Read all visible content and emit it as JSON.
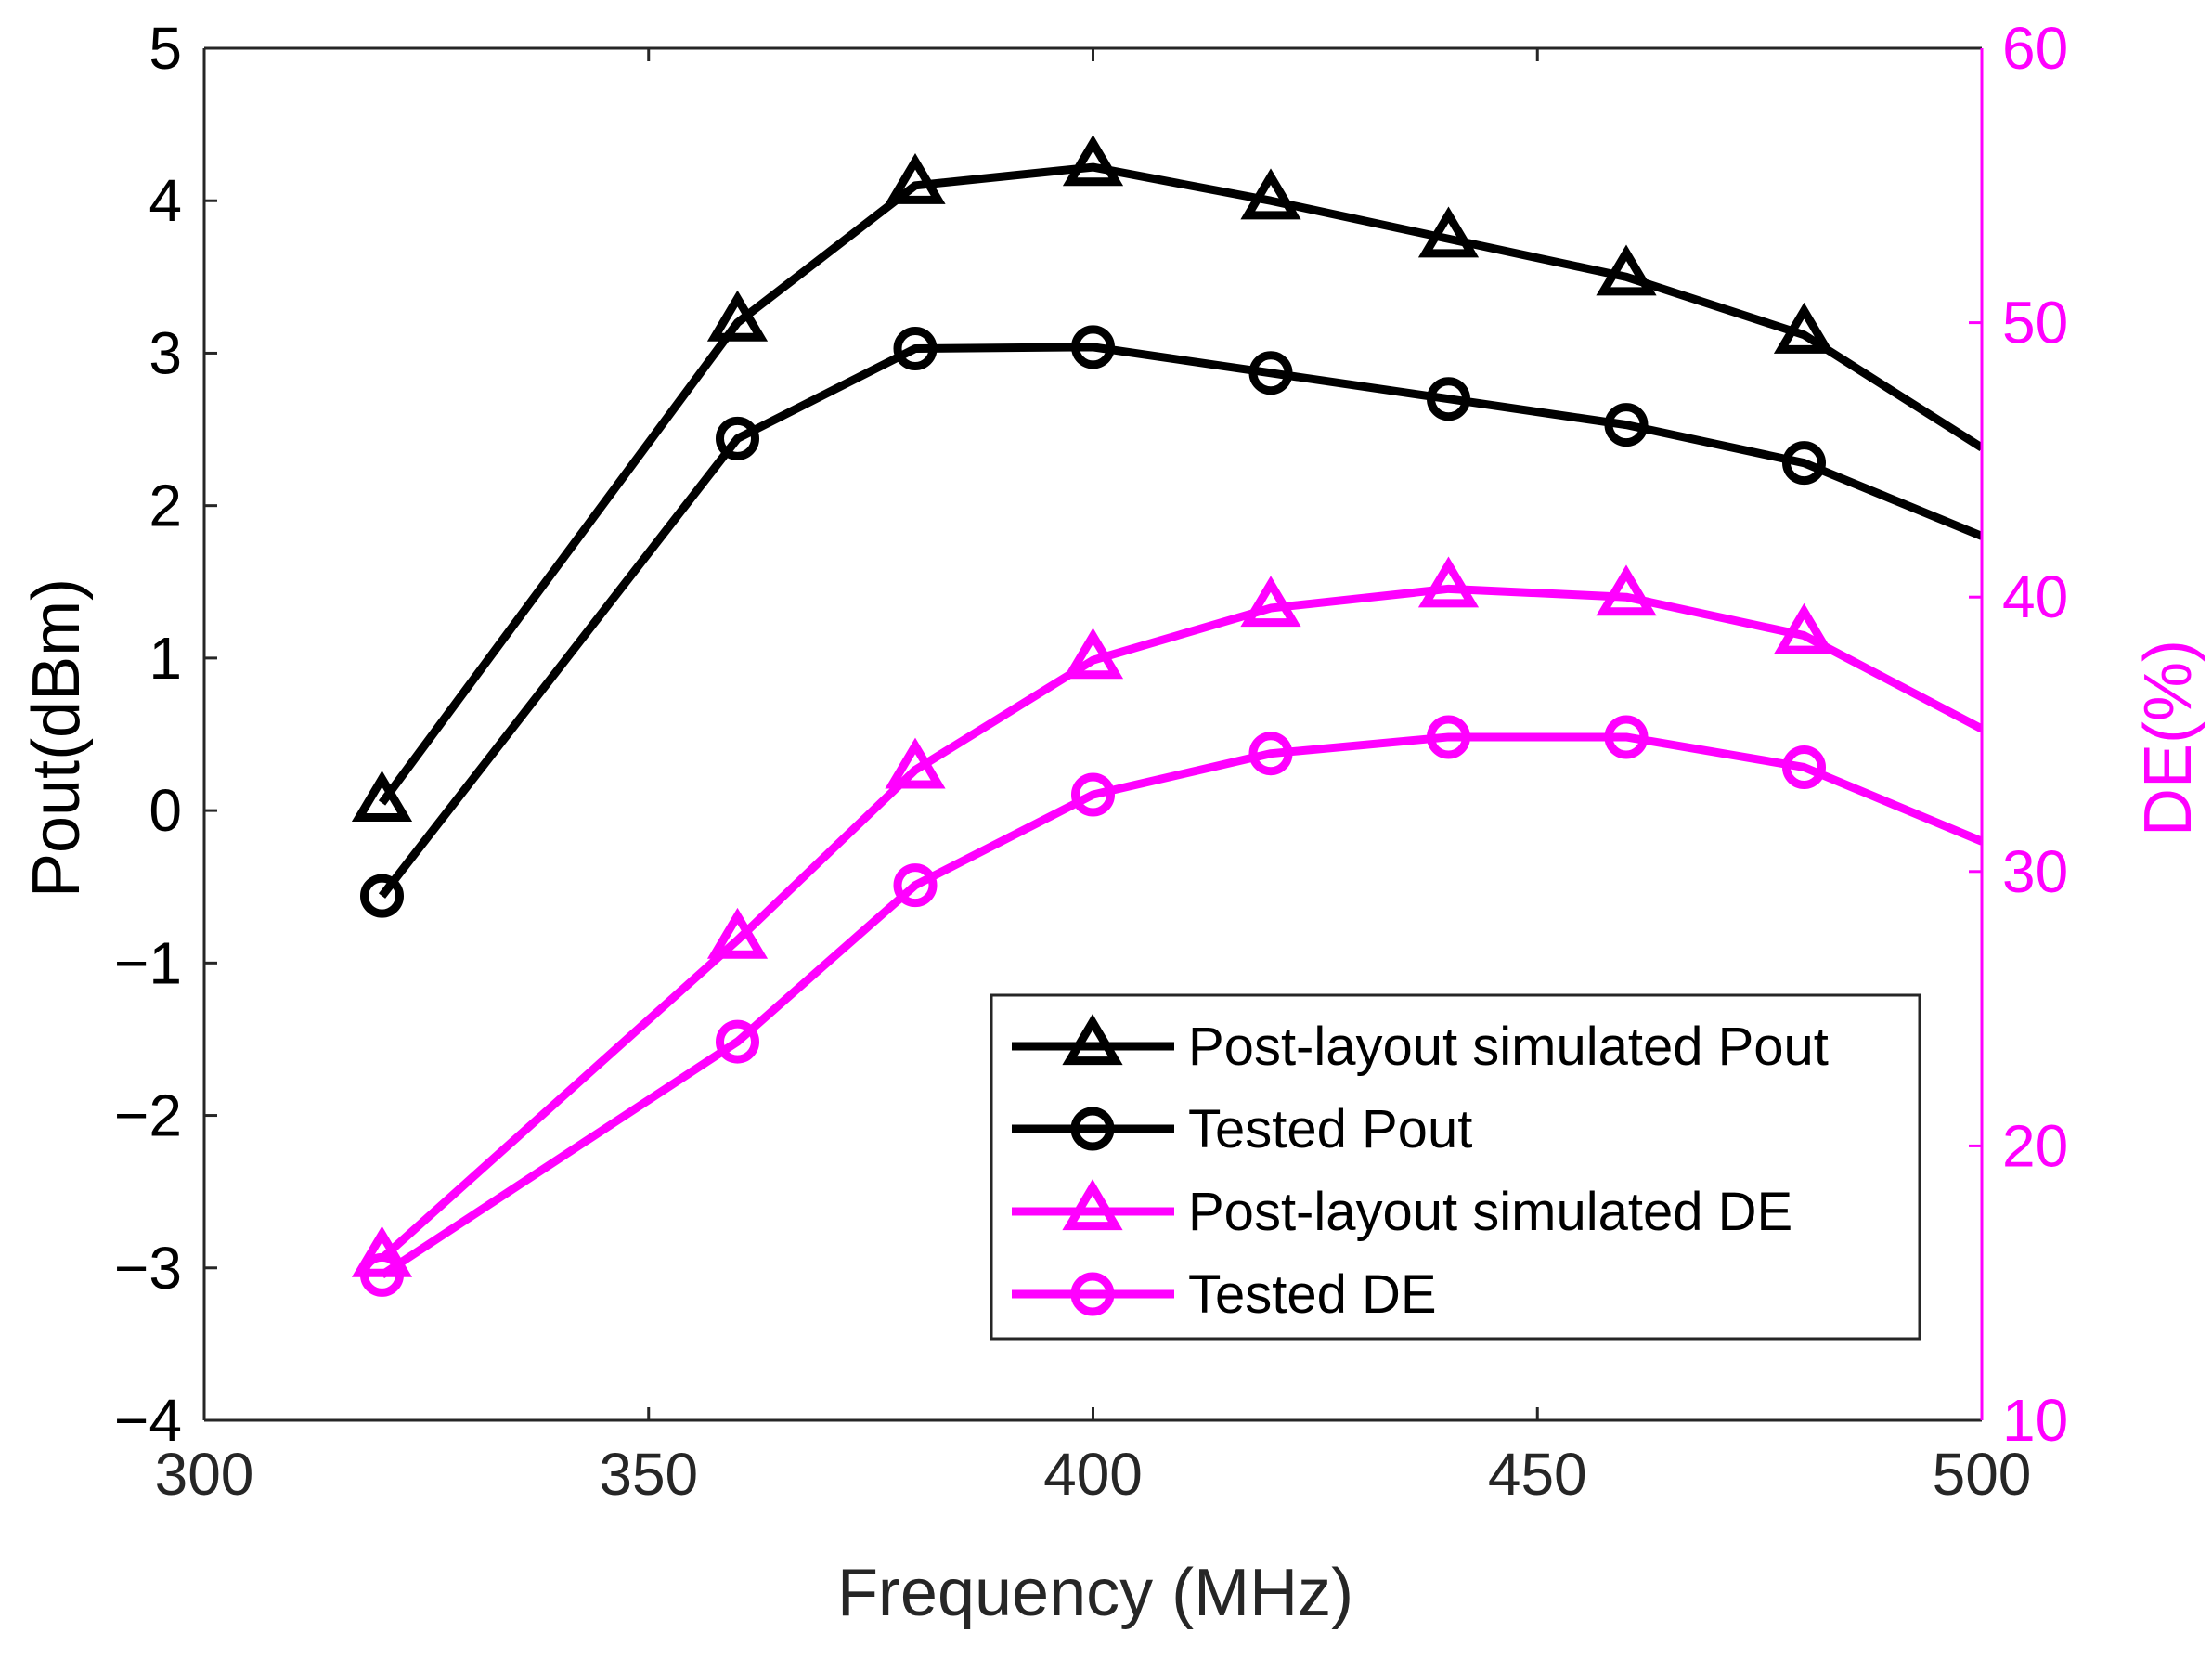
{
  "chart_data": {
    "type": "line",
    "xlabel": "Frequency (MHz)",
    "ylabel_left": "Pout(dBm)",
    "ylabel_right": "DE(%)",
    "xlim": [
      300,
      500
    ],
    "ylim_left": [
      -4,
      5
    ],
    "ylim_right": [
      10,
      60
    ],
    "x_ticks": [
      "300",
      "350",
      "400",
      "450",
      "500"
    ],
    "y_left_ticks": [
      "−4",
      "−3",
      "−2",
      "−1",
      "0",
      "1",
      "2",
      "3",
      "4",
      "5"
    ],
    "y_right_ticks": [
      "10",
      "20",
      "30",
      "40",
      "50",
      "60"
    ],
    "x": [
      320,
      360,
      380,
      400,
      420,
      440,
      460,
      480,
      500
    ],
    "series": [
      {
        "name": "Post-layout simulated Pout",
        "axis": "left",
        "marker": "triangle",
        "color": "#000000",
        "values": [
          0.05,
          3.2,
          4.1,
          4.22,
          4.0,
          3.75,
          3.5,
          3.12,
          2.38
        ]
      },
      {
        "name": "Tested Pout",
        "axis": "left",
        "marker": "circle",
        "color": "#000000",
        "values": [
          -0.56,
          2.44,
          3.03,
          3.04,
          2.87,
          2.7,
          2.53,
          2.28,
          1.8
        ]
      },
      {
        "name": "Post-layout simulated DE",
        "axis": "right",
        "marker": "triangle",
        "color": "#ff00ff",
        "values": [
          15.9,
          27.5,
          33.7,
          37.7,
          39.6,
          40.3,
          40.0,
          38.6,
          35.2
        ]
      },
      {
        "name": "Tested DE",
        "axis": "right",
        "marker": "circle",
        "color": "#ff00ff",
        "values": [
          15.3,
          23.8,
          29.5,
          32.8,
          34.3,
          34.9,
          34.9,
          33.8,
          31.1
        ]
      }
    ],
    "legend_position": "bottom-right",
    "grid": false
  }
}
